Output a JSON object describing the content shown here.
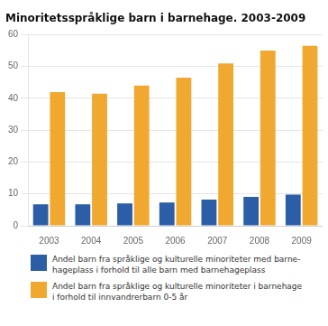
{
  "chart_data": {
    "type": "bar",
    "title": "Minoritetsspråklige barn i barnehage. 2003-2009",
    "categories": [
      "2003",
      "2004",
      "2005",
      "2006",
      "2007",
      "2008",
      "2009"
    ],
    "series": [
      {
        "name": "Andel barn fra språklige og kulturelle minoriteter med barne-\nhageplass i forhold til alle barn med barnehageplass",
        "color": "#2B5EA7",
        "values": [
          6.7,
          6.7,
          7.0,
          7.3,
          8.2,
          9.1,
          9.8
        ]
      },
      {
        "name": "Andel barn fra språklige og kulturelle minoriteter i barnehage\ni forhold til innvandrerbarn 0-5 år",
        "color": "#F0A830",
        "values": [
          42.0,
          41.5,
          44.0,
          46.5,
          51.0,
          55.0,
          56.5
        ]
      }
    ],
    "ylim": [
      0,
      60
    ],
    "yticks": [
      0,
      10,
      20,
      30,
      40,
      50,
      60
    ],
    "grid": true,
    "legend": "bottom"
  }
}
